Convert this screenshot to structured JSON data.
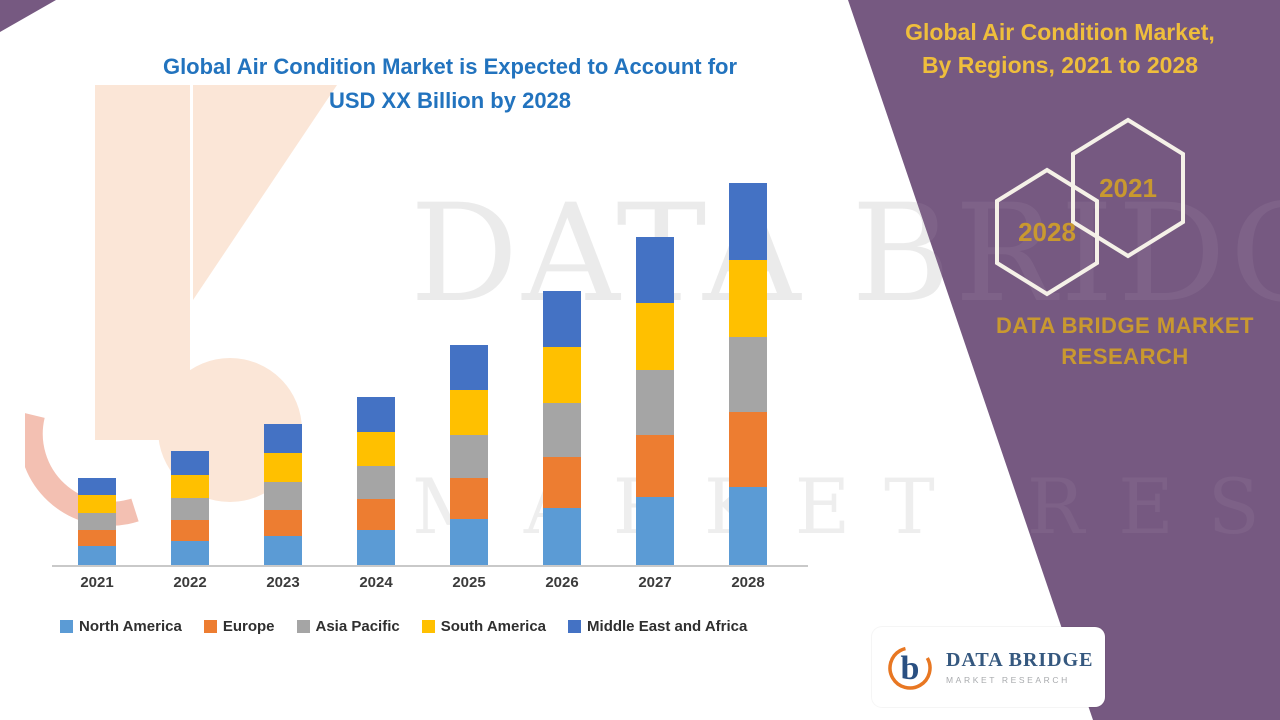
{
  "main_title": {
    "line1": "Global Air Condition Market is Expected to Account for",
    "line2": "USD XX Billion by 2028"
  },
  "right_panel": {
    "title_line1": "Global Air Condition Market,",
    "title_line2": "By Regions,  2021 to 2028",
    "hexagon_back_label": "2028",
    "hexagon_front_label": "2021",
    "brand_line1": "DATA BRIDGE MARKET",
    "brand_line2": "RESEARCH"
  },
  "watermark": {
    "line1": "DATA BRIDGE",
    "line2": "MARKET RESEARCH"
  },
  "logo_card": {
    "brand": "DATA BRIDGE",
    "subtitle": "MARKET RESEARCH"
  },
  "chart_data": {
    "type": "bar",
    "stacked": true,
    "title": "Global Air Condition Market is Expected to Account for USD XX Billion by 2028",
    "xlabel": "",
    "ylabel": "",
    "ylim": [
      0,
      40
    ],
    "grid": false,
    "legend_position": "bottom",
    "categories": [
      "2021",
      "2022",
      "2023",
      "2024",
      "2025",
      "2026",
      "2027",
      "2028"
    ],
    "series": [
      {
        "name": "North America",
        "color": "#5B9BD5",
        "values": [
          1.9,
          2.4,
          2.9,
          3.5,
          4.6,
          5.7,
          6.8,
          7.8
        ]
      },
      {
        "name": "Europe",
        "color": "#ED7D31",
        "values": [
          1.6,
          2.1,
          2.6,
          3.1,
          4.1,
          5.1,
          6.2,
          7.5
        ]
      },
      {
        "name": "Asia Pacific",
        "color": "#A5A5A5",
        "values": [
          1.7,
          2.2,
          2.8,
          3.3,
          4.3,
          5.4,
          6.5,
          7.5
        ]
      },
      {
        "name": "South America",
        "color": "#FFC000",
        "values": [
          1.8,
          2.3,
          2.9,
          3.4,
          4.5,
          5.6,
          6.7,
          7.7
        ]
      },
      {
        "name": "Middle East and Africa",
        "color": "#4472C4",
        "values": [
          1.7,
          2.4,
          2.9,
          3.5,
          4.5,
          5.6,
          6.6,
          7.7
        ]
      }
    ]
  },
  "colors": {
    "purple": "#765981",
    "gold": "#EFBE3C",
    "gold_deep": "#C9992F",
    "title_blue": "#2273BE",
    "axis": "#C9C9C9"
  }
}
